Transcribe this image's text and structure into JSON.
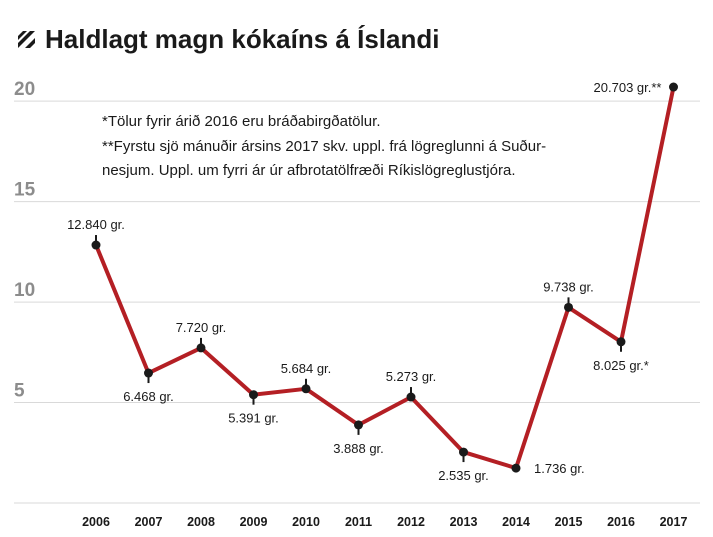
{
  "title": "Haldlagt magn kókaíns á Íslandi",
  "notes": [
    "*Tölur fyrir árið 2016 eru bráðabirgðatölur.",
    "**Fyrstu sjö mánuðir ársins 2017 skv. uppl. frá lögreglunni á Suður-",
    "nesjum. Uppl. um fyrri ár úr afbrotatölfræði Ríkislögreglustjóra."
  ],
  "colors": {
    "line": "#b41f24",
    "marker": "#1a1a1a",
    "grid": "#d9d9d9",
    "ytick": "#8c8c8c",
    "title_icon": "#1a1a1a"
  },
  "chart_data": {
    "type": "line",
    "title": "Haldlagt magn kókaíns á Íslandi",
    "xlabel": "",
    "ylabel": "",
    "categories": [
      "2006",
      "2007",
      "2008",
      "2009",
      "2010",
      "2011",
      "2012",
      "2013",
      "2014",
      "2015",
      "2016",
      "2017"
    ],
    "values": [
      12.84,
      6.468,
      7.72,
      5.391,
      5.684,
      3.888,
      5.273,
      2.535,
      1.736,
      9.738,
      8.025,
      20.703
    ],
    "data_labels": [
      "12.840 gr.",
      "6.468 gr.",
      "7.720 gr.",
      "5.391 gr.",
      "5.684 gr.",
      "3.888 gr.",
      "5.273 gr.",
      "2.535 gr.",
      "1.736 gr.",
      "9.738 gr.",
      "8.025 gr.*",
      "20.703 gr.**"
    ],
    "label_side": [
      "above",
      "below",
      "above",
      "below",
      "above",
      "below",
      "above",
      "below",
      "right",
      "above",
      "below",
      "left"
    ],
    "yticks": [
      5,
      10,
      15,
      20
    ],
    "ylim": [
      0,
      22
    ],
    "grid": true,
    "legend": "none"
  }
}
